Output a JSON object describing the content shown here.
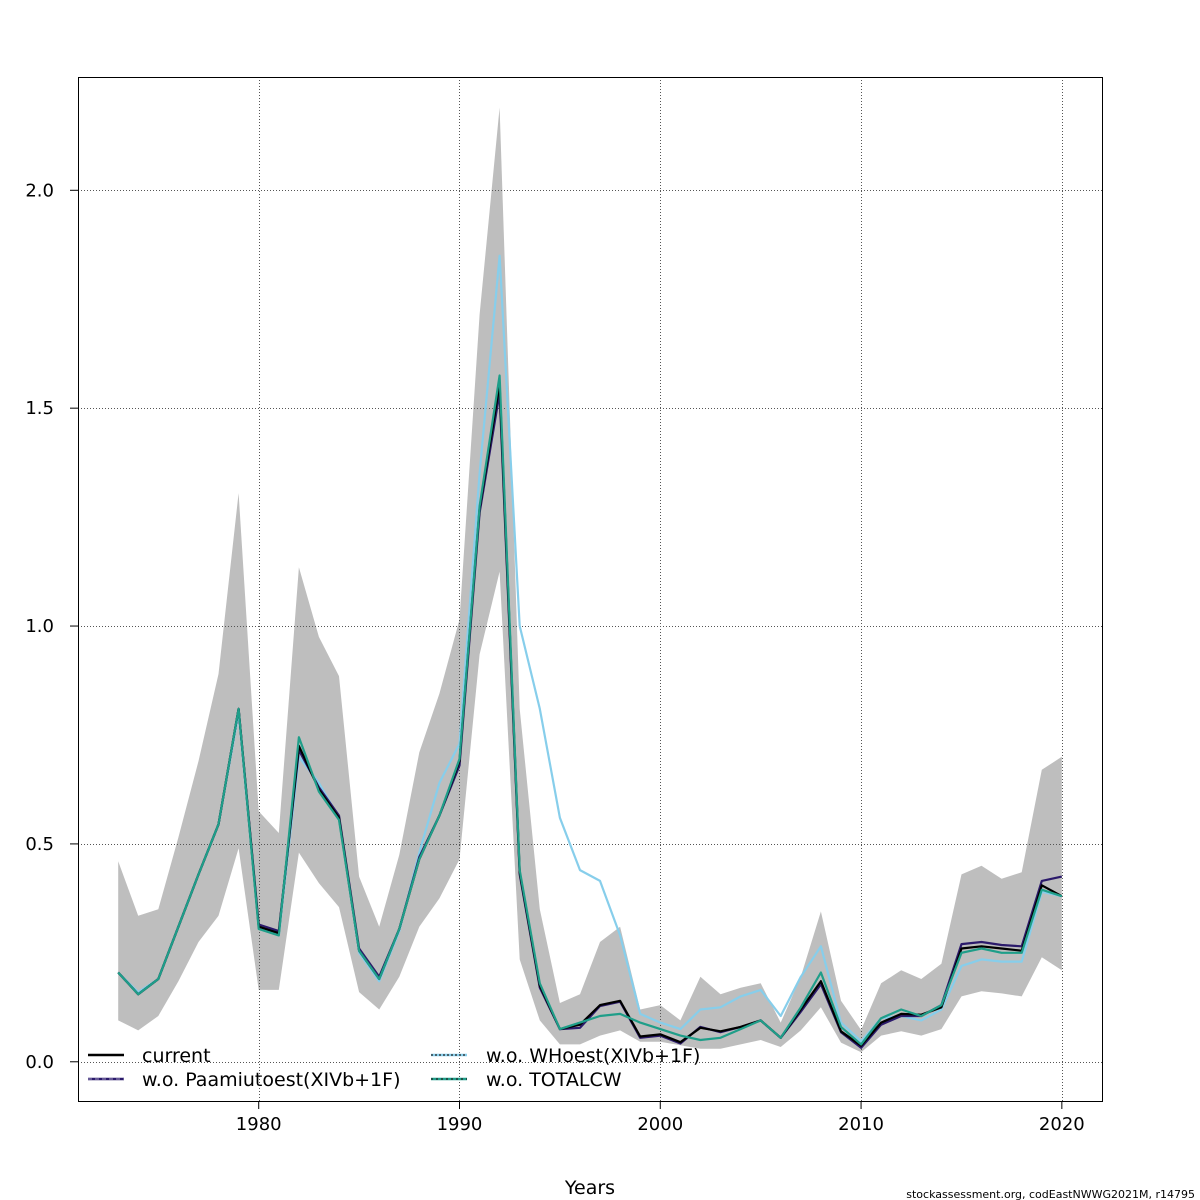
{
  "chart_data": {
    "type": "line",
    "title": "",
    "xlabel": "Years",
    "ylabel": "",
    "xlim": [
      1971,
      2022
    ],
    "ylim": [
      -0.09,
      2.26
    ],
    "grid": true,
    "x_ticks": [
      1980,
      1990,
      2000,
      2010,
      2020
    ],
    "y_ticks": [
      0.0,
      0.5,
      1.0,
      1.5,
      2.0
    ],
    "x_tick_labels": [
      "1980",
      "1990",
      "2000",
      "2010",
      "2020"
    ],
    "y_tick_labels": [
      "0.0",
      "0.5",
      "1.0",
      "1.5",
      "2.0"
    ],
    "legend_position": "bottom-left",
    "x": [
      1973,
      1974,
      1975,
      1976,
      1977,
      1978,
      1979,
      1980,
      1981,
      1982,
      1983,
      1984,
      1985,
      1986,
      1987,
      1988,
      1989,
      1990,
      1991,
      1992,
      1993,
      1994,
      1995,
      1996,
      1997,
      1998,
      1999,
      2000,
      2001,
      2002,
      2003,
      2004,
      2005,
      2006,
      2007,
      2008,
      2009,
      2010,
      2011,
      2012,
      2013,
      2014,
      2015,
      2016,
      2017,
      2018,
      2019,
      2020
    ],
    "confidence_band": {
      "color": "#bebebe",
      "lower": [
        0.095,
        0.072,
        0.105,
        0.185,
        0.275,
        0.335,
        0.49,
        0.165,
        0.165,
        0.48,
        0.41,
        0.355,
        0.16,
        0.12,
        0.195,
        0.31,
        0.375,
        0.465,
        0.935,
        1.125,
        0.235,
        0.095,
        0.04,
        0.04,
        0.06,
        0.072,
        0.046,
        0.046,
        0.038,
        0.03,
        0.03,
        0.04,
        0.05,
        0.034,
        0.072,
        0.125,
        0.044,
        0.022,
        0.06,
        0.07,
        0.06,
        0.075,
        0.15,
        0.162,
        0.157,
        0.15,
        0.24,
        0.21
      ],
      "upper": [
        0.46,
        0.335,
        0.35,
        0.515,
        0.69,
        0.89,
        1.305,
        0.575,
        0.525,
        1.135,
        0.975,
        0.885,
        0.425,
        0.31,
        0.475,
        0.71,
        0.845,
        1.015,
        1.715,
        2.19,
        0.81,
        0.35,
        0.135,
        0.155,
        0.275,
        0.31,
        0.12,
        0.13,
        0.095,
        0.195,
        0.155,
        0.17,
        0.18,
        0.09,
        0.195,
        0.345,
        0.14,
        0.073,
        0.18,
        0.21,
        0.19,
        0.225,
        0.43,
        0.45,
        0.42,
        0.435,
        0.67,
        0.7
      ]
    },
    "series": [
      {
        "name": "current",
        "color": "#000000",
        "dash": "solid",
        "values": [
          0.205,
          0.155,
          0.19,
          0.31,
          0.43,
          0.545,
          0.81,
          0.31,
          0.295,
          0.725,
          0.625,
          0.56,
          0.255,
          0.19,
          0.305,
          0.465,
          0.565,
          0.69,
          1.27,
          1.555,
          0.435,
          0.175,
          0.075,
          0.085,
          0.13,
          0.14,
          0.058,
          0.063,
          0.045,
          0.078,
          0.07,
          0.08,
          0.095,
          0.055,
          0.12,
          0.185,
          0.07,
          0.037,
          0.09,
          0.11,
          0.108,
          0.125,
          0.26,
          0.265,
          0.26,
          0.255,
          0.405,
          0.38
        ]
      },
      {
        "name": "w.o. Paamiutoest(XIVb+1F)",
        "color": "#2b1a6b",
        "dash": "dashed",
        "values": [
          0.205,
          0.155,
          0.19,
          0.31,
          0.43,
          0.545,
          0.81,
          0.315,
          0.3,
          0.715,
          0.63,
          0.565,
          0.26,
          0.195,
          0.305,
          0.47,
          0.565,
          0.68,
          1.26,
          1.535,
          0.43,
          0.17,
          0.075,
          0.078,
          0.128,
          0.138,
          0.055,
          0.06,
          0.042,
          0.08,
          0.068,
          0.08,
          0.095,
          0.055,
          0.115,
          0.178,
          0.068,
          0.032,
          0.085,
          0.105,
          0.105,
          0.13,
          0.27,
          0.275,
          0.268,
          0.265,
          0.415,
          0.425
        ]
      },
      {
        "name": "w.o. WHoest(XIVb+1F)",
        "color": "#87ceeb",
        "dash": "dotted",
        "values": [
          0.205,
          0.16,
          0.19,
          0.31,
          0.43,
          0.545,
          0.8,
          0.31,
          0.29,
          0.7,
          0.64,
          0.56,
          0.25,
          0.185,
          0.3,
          0.48,
          0.64,
          0.73,
          1.35,
          1.85,
          1.0,
          0.81,
          0.56,
          0.44,
          0.415,
          0.29,
          0.11,
          0.09,
          0.075,
          0.12,
          0.125,
          0.15,
          0.165,
          0.105,
          0.195,
          0.265,
          0.09,
          0.047,
          0.1,
          0.105,
          0.095,
          0.12,
          0.22,
          0.235,
          0.23,
          0.23,
          0.39,
          0.38
        ]
      },
      {
        "name": "w.o. TOTALCW",
        "color": "#1f9e89",
        "dash": "dashed",
        "values": [
          0.205,
          0.155,
          0.19,
          0.31,
          0.43,
          0.545,
          0.81,
          0.305,
          0.29,
          0.745,
          0.62,
          0.555,
          0.255,
          0.19,
          0.305,
          0.465,
          0.565,
          0.695,
          1.275,
          1.575,
          0.44,
          0.18,
          0.075,
          0.09,
          0.105,
          0.11,
          0.09,
          0.075,
          0.06,
          0.05,
          0.055,
          0.075,
          0.095,
          0.055,
          0.125,
          0.205,
          0.08,
          0.04,
          0.1,
          0.12,
          0.105,
          0.13,
          0.25,
          0.26,
          0.25,
          0.25,
          0.395,
          0.38
        ]
      }
    ]
  },
  "legend": {
    "items": [
      {
        "label": "current",
        "color": "#000000"
      },
      {
        "label": "w.o. WHoest(XIVb+1F)",
        "color": "#87ceeb"
      },
      {
        "label": "w.o. Paamiutoest(XIVb+1F)",
        "color": "#2b1a6b"
      },
      {
        "label": "w.o. TOTALCW",
        "color": "#1f9e89"
      }
    ]
  },
  "credit": "stockassessment.org, codEastNWWG2021M, r14795"
}
